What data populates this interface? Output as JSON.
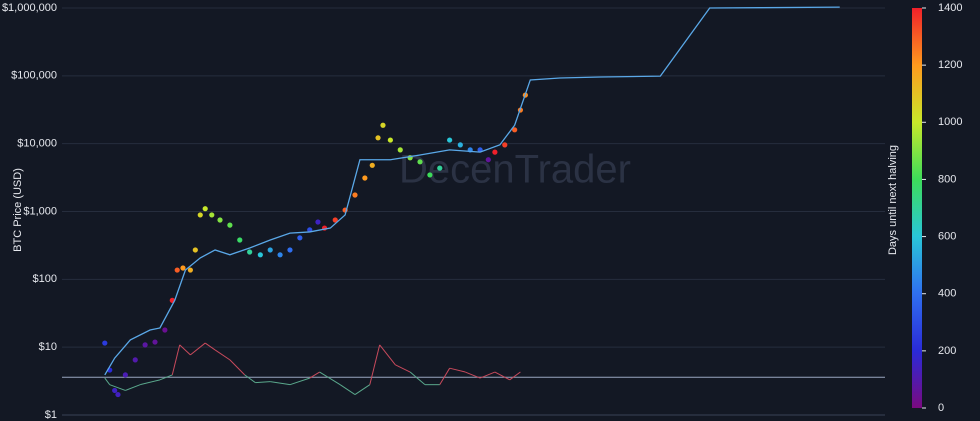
{
  "chart_data": {
    "type": "scatter",
    "y_label": "BTC Price (USD)",
    "colorbar_label": "Days until next halving",
    "watermark": "DecenTrader",
    "log_y": true,
    "grid": true,
    "xlim": [
      0,
      100
    ],
    "ylim": [
      1,
      1000000
    ],
    "yticks": [
      {
        "value": 1,
        "label": "$1"
      },
      {
        "value": 10,
        "label": "$10"
      },
      {
        "value": 100,
        "label": "$100"
      },
      {
        "value": 1000,
        "label": "$1,000"
      },
      {
        "value": 10000,
        "label": "$10,000"
      },
      {
        "value": 100000,
        "label": "$100,000"
      },
      {
        "value": 1000000,
        "label": "$1,000,000"
      }
    ],
    "colorbar_lim": [
      0,
      1400
    ],
    "colorbar_ticks": [
      0,
      200,
      400,
      600,
      800,
      1000,
      1200,
      1400
    ],
    "colorscale": [
      [
        0,
        "#7a0a80"
      ],
      [
        200,
        "#2a2ad8"
      ],
      [
        400,
        "#2f6ff0"
      ],
      [
        600,
        "#29c6d8"
      ],
      [
        800,
        "#3ddc5a"
      ],
      [
        1000,
        "#c8e82a"
      ],
      [
        1200,
        "#ff9a1e"
      ],
      [
        1400,
        "#f0202a"
      ]
    ],
    "reference_value": 3.6,
    "reference_color": "#9aa6c0",
    "series": [
      {
        "type": "scatter",
        "x": [
          5.2,
          5.8,
          6.4,
          6.8,
          7.7,
          8.9,
          10.1,
          11.3,
          12.5,
          13.4,
          14.0,
          14.7,
          15.6,
          16.2,
          16.8,
          17.4,
          18.2,
          19.2,
          20.4,
          21.6,
          22.8,
          24.1,
          25.3,
          26.5,
          27.7,
          28.9,
          30.1,
          31.1,
          31.9,
          33.2,
          34.4,
          35.6,
          36.8,
          37.7,
          38.4,
          39.0,
          39.9,
          41.1,
          42.3,
          43.5,
          44.7,
          45.9,
          47.1,
          48.4,
          49.6,
          50.8,
          51.8,
          52.6,
          53.8,
          55.0,
          55.7,
          56.3
        ],
        "values": [
          11.5,
          4.6,
          2.3,
          2.0,
          3.9,
          6.5,
          10.8,
          11.9,
          17.9,
          49,
          137,
          147,
          137,
          271,
          890,
          1100,
          890,
          750,
          630,
          380,
          253,
          230,
          271,
          230,
          271,
          409,
          537,
          700,
          570,
          750,
          1050,
          1750,
          3120,
          4800,
          12200,
          18700,
          11300,
          8100,
          6200,
          5400,
          3460,
          4360,
          11300,
          9600,
          8100,
          8100,
          5800,
          7500,
          9600,
          16000,
          31300,
          52000
        ],
        "color_values": [
          250,
          200,
          150,
          140,
          120,
          100,
          80,
          60,
          40,
          1400,
          1300,
          1200,
          1150,
          1100,
          1050,
          1000,
          950,
          900,
          850,
          780,
          700,
          600,
          520,
          450,
          400,
          350,
          300,
          150,
          1400,
          1350,
          1300,
          1250,
          1200,
          1150,
          1100,
          1050,
          1000,
          950,
          900,
          850,
          800,
          700,
          600,
          550,
          450,
          350,
          60,
          1400,
          1350,
          1300,
          1250,
          1220
        ]
      },
      {
        "type": "line",
        "color": "#5aa8e8",
        "x": [
          5.2,
          6.4,
          8.3,
          10.7,
          11.9,
          13.7,
          15.0,
          16.8,
          18.6,
          20.4,
          22.8,
          25.3,
          27.7,
          30.1,
          32.6,
          34.4,
          36.2,
          39.9,
          43.5,
          47.1,
          50.8,
          53.2,
          55.0,
          56.9,
          60.5,
          65.4,
          72.7,
          78.7,
          84.8,
          94.5
        ],
        "values": [
          3.9,
          6.9,
          12.8,
          17.9,
          19.2,
          49,
          137,
          207,
          271,
          230,
          290,
          380,
          480,
          500,
          570,
          890,
          5800,
          5800,
          6800,
          8100,
          7500,
          9600,
          18700,
          87000,
          93000,
          96000,
          99000,
          1000000,
          1010000,
          1030000
        ]
      },
      {
        "type": "ratio",
        "color_above": "#c84a5c",
        "color_below": "#5aa88c",
        "x": [
          5.2,
          5.8,
          7.7,
          9.5,
          11.9,
          13.4,
          14.3,
          15.6,
          17.4,
          18.6,
          20.4,
          22.2,
          23.5,
          25.3,
          27.7,
          30.1,
          31.3,
          33.8,
          35.6,
          37.4,
          38.6,
          40.5,
          42.3,
          44.1,
          45.9,
          47.1,
          49.0,
          50.8,
          52.6,
          54.4,
          55.7
        ],
        "values": [
          3.5,
          2.8,
          2.3,
          2.8,
          3.3,
          3.9,
          10.8,
          7.7,
          11.5,
          9.1,
          6.5,
          3.9,
          3.0,
          3.1,
          2.8,
          3.5,
          4.3,
          2.8,
          2.0,
          2.8,
          10.8,
          5.5,
          4.3,
          2.8,
          2.8,
          4.9,
          4.3,
          3.5,
          4.3,
          3.3,
          4.3
        ]
      }
    ]
  }
}
